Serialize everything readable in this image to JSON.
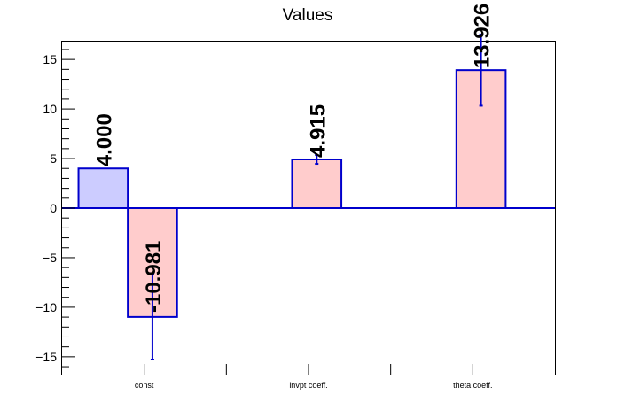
{
  "chart_data": {
    "type": "bar",
    "title": "Values",
    "xlabel": "",
    "ylabel": "",
    "ylim": [
      -16.8,
      16.8
    ],
    "yticks": [
      -15,
      -10,
      -5,
      0,
      5,
      10,
      15
    ],
    "ytick_labels": [
      "−15",
      "−10",
      "−5",
      "0",
      "5",
      "10",
      "15"
    ],
    "categories": [
      "const",
      "invpt coeff.",
      "theta coeff."
    ],
    "bars": [
      {
        "label": "4.000",
        "category_index": 0,
        "slot": 0,
        "value": 4.0,
        "error": null,
        "color": "#ccccff"
      },
      {
        "label": "-10.981",
        "category_index": 0,
        "slot": 1,
        "value": -10.981,
        "error": 4.3,
        "color": "#ffcccc"
      },
      {
        "label": "4.915",
        "category_index": 1,
        "slot": 1,
        "value": 4.915,
        "error": 0.45,
        "color": "#ffcccc"
      },
      {
        "label": "13.926",
        "category_index": 2,
        "slot": 1,
        "value": 13.926,
        "error": 3.6,
        "color": "#ffcccc"
      }
    ],
    "edge_color": "#0000cc",
    "grid": false,
    "legend": "none"
  }
}
